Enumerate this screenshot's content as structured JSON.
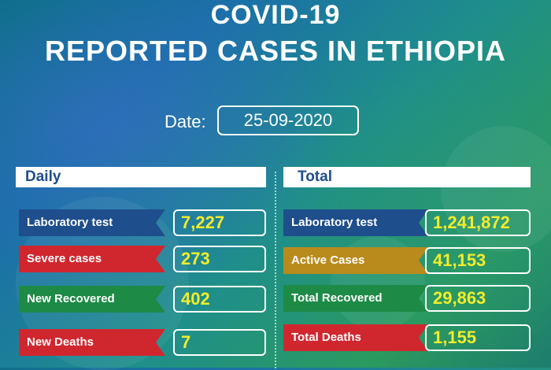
{
  "title_line1": "COVID-19",
  "title_line2": "REPORTED CASES IN ETHIOPIA",
  "date_label": "Date:",
  "date_value": "25-09-2020",
  "daily": {
    "heading": "Daily",
    "rows": [
      {
        "label": "Laboratory test",
        "value": "7,227",
        "color": "#1e4e8c"
      },
      {
        "label": "Severe cases",
        "value": "273",
        "color": "#d0272f"
      },
      {
        "label": "New Recovered",
        "value": "402",
        "color": "#1d8a46"
      },
      {
        "label": "New Deaths",
        "value": "7",
        "color": "#d0272f"
      }
    ]
  },
  "total": {
    "heading": "Total",
    "rows": [
      {
        "label": "Laboratory test",
        "value": "1,241,872",
        "color": "#1e4e8c"
      },
      {
        "label": "Active Cases",
        "value": "41,153",
        "color": "#b98b1c"
      },
      {
        "label": "Total Recovered",
        "value": "29,863",
        "color": "#1d8a46"
      },
      {
        "label": "Total Deaths",
        "value": "1,155",
        "color": "#d0272f"
      }
    ]
  },
  "colors": {
    "value_text": "#f3ec2a",
    "header_text": "#1f4e8c"
  }
}
